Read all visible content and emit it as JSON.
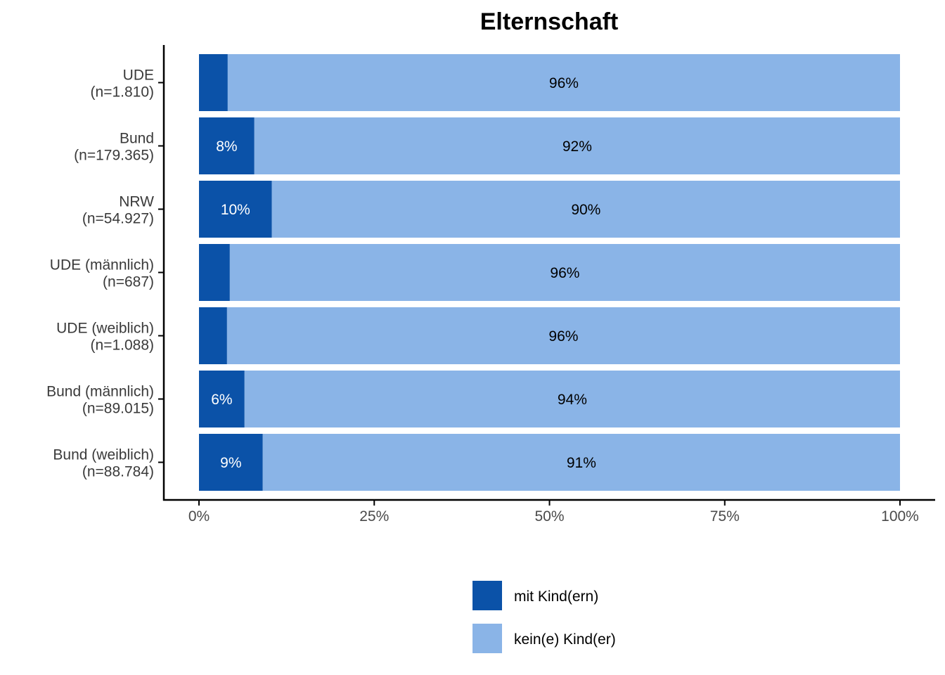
{
  "chart_data": {
    "type": "bar",
    "orientation": "horizontal",
    "stacked": true,
    "title": "Elternschaft",
    "xlabel": "",
    "ylabel": "",
    "xlim": [
      0,
      100
    ],
    "x_ticks": [
      0,
      25,
      50,
      75,
      100
    ],
    "x_tick_labels": [
      "0%",
      "25%",
      "50%",
      "75%",
      "100%"
    ],
    "categories": [
      [
        "UDE",
        "(n=1.810)"
      ],
      [
        "Bund",
        "(n=179.365)"
      ],
      [
        "NRW",
        "(n=54.927)"
      ],
      [
        "UDE (männlich)",
        "(n=687)"
      ],
      [
        "UDE (weiblich)",
        "(n=1.088)"
      ],
      [
        "Bund (männlich)",
        "(n=89.015)"
      ],
      [
        "Bund (weiblich)",
        "(n=88.784)"
      ]
    ],
    "series": [
      {
        "name": "mit Kind(ern)",
        "color": "#0b52a8",
        "label_color": "#ffffff",
        "values": [
          4.1,
          7.9,
          10.4,
          4.4,
          4.0,
          6.5,
          9.1
        ],
        "labels": [
          "",
          "8%",
          "10%",
          "",
          "",
          "6%",
          "9%"
        ]
      },
      {
        "name": "kein(e) Kind(er)",
        "color": "#8ab4e7",
        "label_color": "#000000",
        "values": [
          95.9,
          92.1,
          89.6,
          95.6,
          96.0,
          93.5,
          90.9
        ],
        "labels": [
          "96%",
          "92%",
          "90%",
          "96%",
          "96%",
          "94%",
          "91%"
        ]
      }
    ],
    "legend_position": "bottom",
    "grid": false
  }
}
